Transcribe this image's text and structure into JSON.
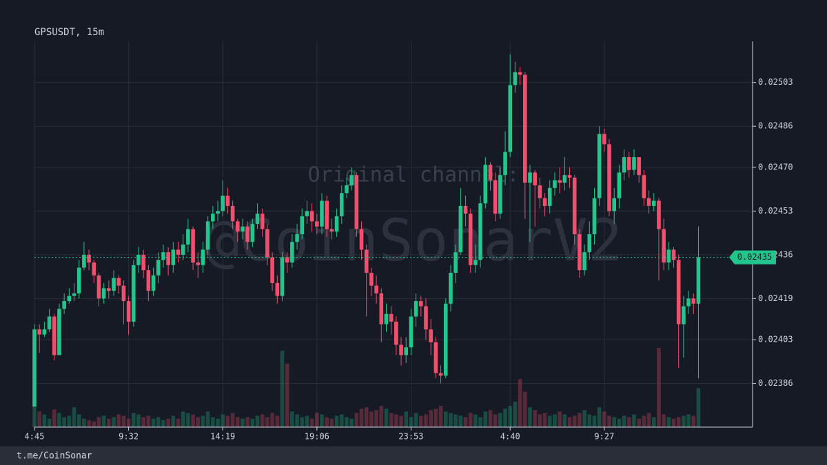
{
  "chart_data": {
    "type": "candlestick",
    "title": "GPSUSDT, 15m",
    "watermark": [
      "Original channel:",
      "@CoinSonarV2"
    ],
    "footer": "t.me/CoinSonar",
    "up_color": "#22c58b",
    "down_color": "#f0506e",
    "grid": true,
    "ylim": [
      0.02369,
      0.02519
    ],
    "yticks": [
      0.02386,
      0.02403,
      0.02419,
      0.02436,
      0.02453,
      {
        "value": 0.0247,
        "label": "0.02470"
      },
      0.02486,
      0.02503
    ],
    "categories": [
      "4:45",
      null,
      null,
      null,
      null,
      null,
      null,
      null,
      null,
      null,
      null,
      null,
      null,
      null,
      null,
      null,
      null,
      null,
      null,
      "9:32",
      null,
      null,
      null,
      null,
      null,
      null,
      null,
      null,
      null,
      null,
      null,
      null,
      null,
      null,
      null,
      null,
      null,
      null,
      "14:19",
      null,
      null,
      null,
      null,
      null,
      null,
      null,
      null,
      null,
      null,
      null,
      null,
      null,
      null,
      null,
      null,
      null,
      null,
      "19:06",
      null,
      null,
      null,
      null,
      null,
      null,
      null,
      null,
      null,
      null,
      null,
      null,
      null,
      null,
      null,
      null,
      null,
      null,
      "23:53",
      null,
      null,
      null,
      null,
      null,
      null,
      null,
      null,
      null,
      null,
      null,
      null,
      null,
      null,
      null,
      null,
      null,
      null,
      null,
      "4:40",
      null,
      null,
      null,
      null,
      null,
      null,
      null,
      null,
      null,
      null,
      null,
      null,
      null,
      null,
      null,
      null,
      null,
      null,
      "9:27",
      null,
      null,
      null,
      null,
      null,
      null,
      null,
      null,
      null,
      null,
      null,
      null,
      null,
      null,
      null,
      null,
      null,
      null,
      null
    ],
    "open": [
      0.02377,
      0.02407,
      0.02405,
      0.02407,
      0.02412,
      0.02397,
      0.02415,
      0.02418,
      0.0242,
      0.02421,
      0.02431,
      0.02436,
      0.02433,
      0.02428,
      0.02419,
      0.02423,
      0.02422,
      0.02427,
      0.02424,
      0.02418,
      0.0241,
      0.02432,
      0.02436,
      0.0243,
      0.02422,
      0.02428,
      0.02434,
      0.02437,
      0.02432,
      0.02438,
      0.02436,
      0.0244,
      0.02446,
      0.02433,
      0.02432,
      0.02438,
      0.02449,
      0.02452,
      0.02453,
      0.02459,
      0.02455,
      0.02449,
      0.02445,
      0.02447,
      0.02441,
      0.02448,
      0.02452,
      0.02446,
      0.02435,
      0.02425,
      0.0242,
      0.02435,
      0.02433,
      0.02441,
      0.02444,
      0.02451,
      0.02453,
      0.02449,
      0.02447,
      0.02457,
      0.02446,
      0.02445,
      0.02451,
      0.0246,
      0.02463,
      0.02467,
      0.02446,
      0.02438,
      0.02429,
      0.02424,
      0.02421,
      0.02409,
      0.02413,
      0.0241,
      0.02401,
      0.02397,
      0.024,
      0.02412,
      0.02418,
      0.02416,
      0.02407,
      0.02402,
      0.0239,
      0.02389,
      0.02417,
      0.02429,
      0.02437,
      0.02455,
      0.02452,
      0.02432,
      0.02434,
      0.02456,
      0.02471,
      0.02465,
      0.02452,
      0.02467,
      0.02476,
      0.02502,
      0.02507,
      0.02506,
      0.02464,
      0.02468,
      0.02463,
      0.02458,
      0.02455,
      0.02462,
      0.02465,
      0.02464,
      0.02467,
      0.02466,
      0.02444,
      0.0243,
      0.02437,
      0.02444,
      0.02458,
      0.02483,
      0.02479,
      0.02453,
      0.02458,
      0.02468,
      0.02474,
      0.02469,
      0.02474,
      0.02467,
      0.02458,
      0.02455,
      0.02457,
      0.02446,
      0.02433,
      0.02438,
      0.02434,
      0.02409,
      0.02416,
      0.02419,
      0.02417
    ],
    "high": [
      0.02409,
      0.02409,
      0.0241,
      0.02415,
      0.02413,
      0.02417,
      0.02421,
      0.02423,
      0.02425,
      0.02434,
      0.02441,
      0.02438,
      0.02434,
      0.02429,
      0.02425,
      0.02426,
      0.0243,
      0.02428,
      0.02426,
      0.0242,
      0.02434,
      0.02439,
      0.02438,
      0.02432,
      0.02431,
      0.02437,
      0.0244,
      0.02439,
      0.02441,
      0.02441,
      0.02444,
      0.0245,
      0.02447,
      0.02437,
      0.02441,
      0.02451,
      0.02455,
      0.02457,
      0.02465,
      0.02462,
      0.02457,
      0.0245,
      0.0245,
      0.02449,
      0.0245,
      0.02456,
      0.02454,
      0.02448,
      0.02437,
      0.02428,
      0.02437,
      0.02437,
      0.02444,
      0.02448,
      0.02454,
      0.02457,
      0.02456,
      0.02452,
      0.0246,
      0.02459,
      0.0245,
      0.02454,
      0.02463,
      0.02466,
      0.0247,
      0.02468,
      0.02449,
      0.0244,
      0.02431,
      0.02428,
      0.02423,
      0.02417,
      0.02416,
      0.02412,
      0.02404,
      0.02404,
      0.02415,
      0.02421,
      0.0242,
      0.02419,
      0.02411,
      0.02404,
      0.02393,
      0.02419,
      0.02432,
      0.0244,
      0.02462,
      0.02459,
      0.02454,
      0.0244,
      0.02459,
      0.02474,
      0.02472,
      0.02468,
      0.0247,
      0.02484,
      0.02514,
      0.02511,
      0.02509,
      0.02507,
      0.02471,
      0.02469,
      0.02466,
      0.0246,
      0.02465,
      0.02468,
      0.0247,
      0.02474,
      0.0247,
      0.02467,
      0.02446,
      0.0244,
      0.02449,
      0.02462,
      0.02486,
      0.02485,
      0.02481,
      0.02462,
      0.02471,
      0.02477,
      0.02476,
      0.02477,
      0.02474,
      0.02469,
      0.02461,
      0.0246,
      0.02458,
      0.0245,
      0.02441,
      0.02439,
      0.02436,
      0.0242,
      0.02422,
      0.02421,
      0.02447
    ],
    "low": [
      0.02377,
      0.02398,
      0.02404,
      0.02406,
      0.02395,
      0.02397,
      0.02413,
      0.02417,
      0.02418,
      0.02419,
      0.0243,
      0.0243,
      0.02425,
      0.02416,
      0.02417,
      0.02419,
      0.0242,
      0.02421,
      0.02409,
      0.02405,
      0.02408,
      0.02429,
      0.02427,
      0.02418,
      0.0242,
      0.02425,
      0.02431,
      0.02428,
      0.02429,
      0.02433,
      0.02434,
      0.02437,
      0.0243,
      0.02427,
      0.02429,
      0.02436,
      0.02446,
      0.02449,
      0.02451,
      0.02452,
      0.02446,
      0.02441,
      0.02442,
      0.02438,
      0.02439,
      0.02446,
      0.02443,
      0.02432,
      0.02422,
      0.02417,
      0.02418,
      0.02429,
      0.02431,
      0.02438,
      0.02442,
      0.02448,
      0.02445,
      0.02444,
      0.02444,
      0.02443,
      0.02442,
      0.02443,
      0.02448,
      0.02458,
      0.02461,
      0.02443,
      0.02434,
      0.02412,
      0.0242,
      0.02417,
      0.02402,
      0.02406,
      0.02405,
      0.02397,
      0.02393,
      0.02394,
      0.02397,
      0.02408,
      0.02412,
      0.02403,
      0.02397,
      0.02388,
      0.02386,
      0.02388,
      0.02414,
      0.02425,
      0.02436,
      0.02447,
      0.02429,
      0.02429,
      0.02431,
      0.02454,
      0.02461,
      0.02449,
      0.0245,
      0.02463,
      0.02474,
      0.02499,
      0.02502,
      0.0245,
      0.02441,
      0.02447,
      0.02454,
      0.02451,
      0.02452,
      0.02459,
      0.0246,
      0.02461,
      0.02462,
      0.0244,
      0.02427,
      0.02428,
      0.02434,
      0.0244,
      0.02455,
      0.02476,
      0.02451,
      0.02448,
      0.02454,
      0.02465,
      0.02466,
      0.02467,
      0.02464,
      0.02455,
      0.02452,
      0.02453,
      0.02426,
      0.0243,
      0.0243,
      0.02431,
      0.02392,
      0.02396,
      0.02413,
      0.02413,
      0.02388
    ],
    "close": [
      0.02407,
      0.02405,
      0.02407,
      0.02412,
      0.02397,
      0.02415,
      0.02418,
      0.0242,
      0.02421,
      0.02431,
      0.02436,
      0.02433,
      0.02428,
      0.02419,
      0.02423,
      0.02422,
      0.02427,
      0.02424,
      0.02418,
      0.0241,
      0.02432,
      0.02436,
      0.0243,
      0.02422,
      0.02428,
      0.02434,
      0.02437,
      0.02432,
      0.02438,
      0.02436,
      0.0244,
      0.02446,
      0.02433,
      0.02432,
      0.02438,
      0.02449,
      0.02452,
      0.02453,
      0.02459,
      0.02455,
      0.02449,
      0.02445,
      0.02447,
      0.02441,
      0.02448,
      0.02452,
      0.02446,
      0.02435,
      0.02425,
      0.0242,
      0.02435,
      0.02433,
      0.02441,
      0.02444,
      0.02451,
      0.02453,
      0.02449,
      0.02447,
      0.02457,
      0.02446,
      0.02445,
      0.02451,
      0.0246,
      0.02463,
      0.02467,
      0.02446,
      0.02438,
      0.02429,
      0.02424,
      0.02421,
      0.02409,
      0.02413,
      0.0241,
      0.02401,
      0.02397,
      0.024,
      0.02412,
      0.02418,
      0.02416,
      0.02407,
      0.02402,
      0.0239,
      0.02389,
      0.02417,
      0.02429,
      0.02437,
      0.02455,
      0.02452,
      0.02432,
      0.02434,
      0.02456,
      0.02471,
      0.02465,
      0.02452,
      0.02467,
      0.02476,
      0.02502,
      0.02507,
      0.02506,
      0.02464,
      0.02468,
      0.02463,
      0.02458,
      0.02455,
      0.02462,
      0.02465,
      0.02464,
      0.02467,
      0.02466,
      0.02444,
      0.0243,
      0.02437,
      0.02444,
      0.02458,
      0.02483,
      0.02479,
      0.02453,
      0.02458,
      0.02468,
      0.02474,
      0.02469,
      0.02474,
      0.02467,
      0.02458,
      0.02455,
      0.02457,
      0.02446,
      0.02433,
      0.02438,
      0.02434,
      0.02409,
      0.02416,
      0.02419,
      0.02417,
      0.02435
    ],
    "volume": [
      30,
      22,
      18,
      12,
      25,
      20,
      14,
      16,
      28,
      18,
      12,
      10,
      8,
      14,
      16,
      12,
      14,
      18,
      16,
      12,
      20,
      18,
      14,
      16,
      12,
      14,
      10,
      12,
      16,
      12,
      22,
      20,
      18,
      14,
      16,
      22,
      14,
      12,
      18,
      16,
      20,
      14,
      12,
      14,
      12,
      16,
      18,
      14,
      20,
      16,
      108,
      90,
      22,
      18,
      14,
      16,
      12,
      20,
      18,
      14,
      12,
      16,
      18,
      14,
      12,
      20,
      26,
      28,
      22,
      24,
      30,
      26,
      20,
      18,
      16,
      22,
      14,
      20,
      16,
      18,
      24,
      26,
      30,
      22,
      20,
      18,
      16,
      14,
      20,
      18,
      14,
      22,
      24,
      18,
      20,
      26,
      30,
      36,
      68,
      50,
      28,
      24,
      18,
      20,
      16,
      18,
      22,
      18,
      14,
      16,
      20,
      24,
      18,
      16,
      28,
      22,
      16,
      14,
      12,
      16,
      14,
      18,
      12,
      16,
      20,
      14,
      112,
      18,
      14,
      12,
      14,
      16,
      18,
      16,
      55
    ]
  }
}
